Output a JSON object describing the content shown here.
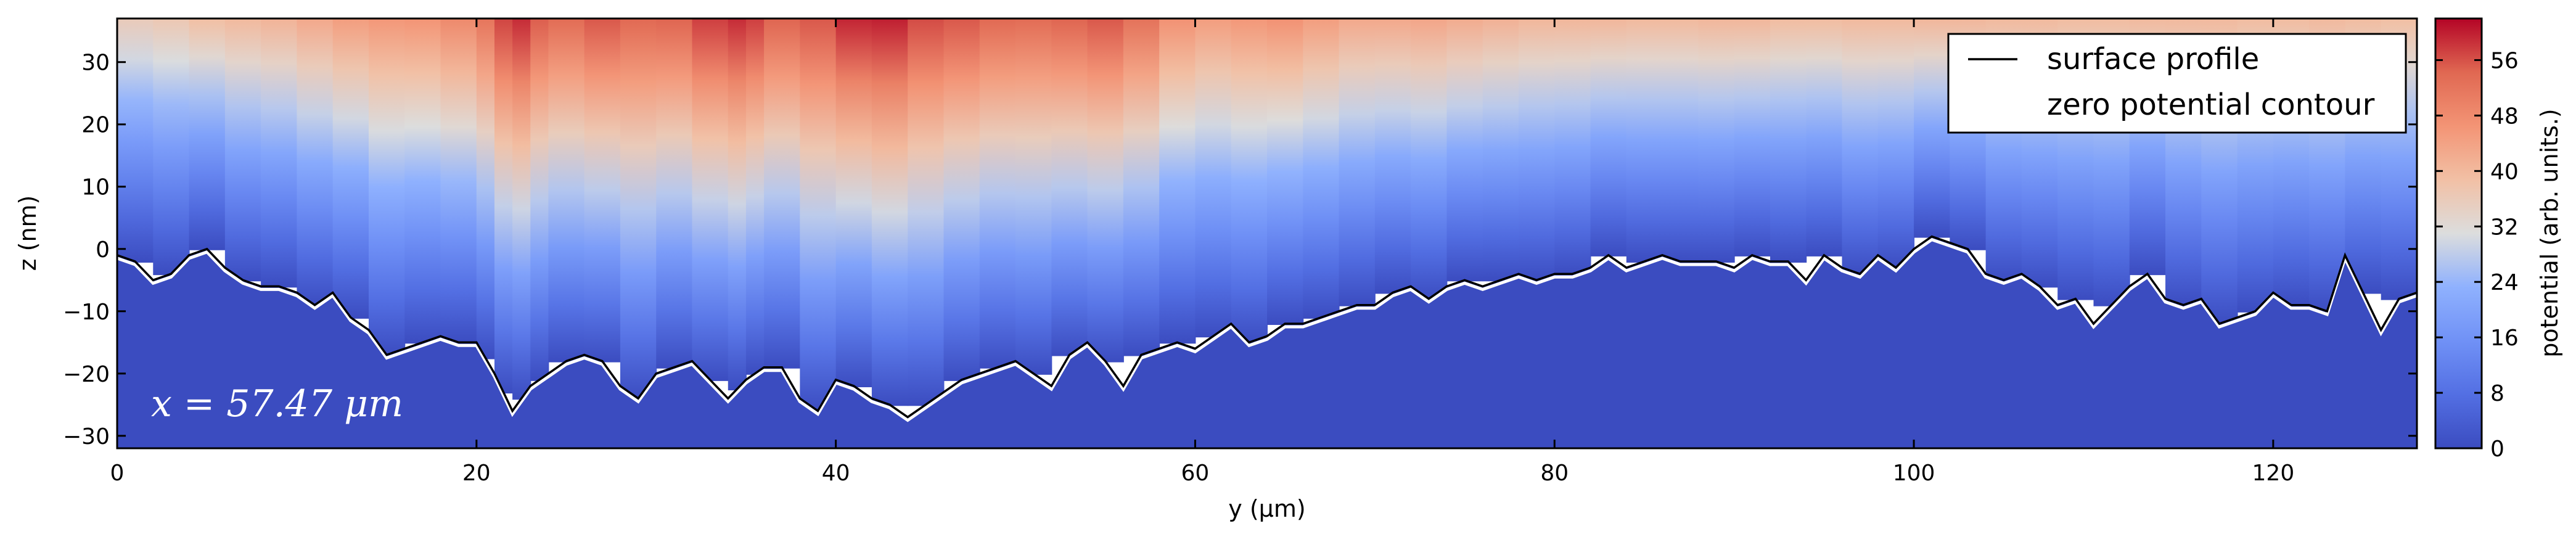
{
  "chart_data": {
    "type": "heatmap",
    "title": "",
    "xlabel": "y (µm)",
    "ylabel": "z (nm)",
    "xlim": [
      0,
      128
    ],
    "ylim": [
      -32,
      37
    ],
    "xticks": [
      0,
      20,
      40,
      60,
      80,
      100,
      120
    ],
    "xtick_labels": [
      "0",
      "20",
      "40",
      "60",
      "80",
      "100",
      "120"
    ],
    "yticks": [
      -30,
      -20,
      -10,
      0,
      10,
      20,
      30
    ],
    "ytick_labels": [
      "−30",
      "−20",
      "−10",
      "0",
      "10",
      "20",
      "30"
    ],
    "annotation": "x = 57.47 μm",
    "legend": {
      "placement": "top-right",
      "entries": [
        {
          "label": "surface profile",
          "color": "#000000"
        },
        {
          "label": "zero potential contour",
          "color": "#ffffff"
        }
      ]
    },
    "colorbar": {
      "label": "potential (arb. units.)",
      "colormap": "coolwarm",
      "range": [
        0,
        62
      ],
      "ticks": [
        0,
        8,
        16,
        24,
        32,
        40,
        48,
        56
      ],
      "tick_labels": [
        "0",
        "8",
        "16",
        "24",
        "32",
        "40",
        "48",
        "56"
      ]
    },
    "below_surface_color": "#3b4cc0",
    "surface_profile": {
      "name": "surface profile",
      "y": [
        0,
        1,
        2,
        3,
        4,
        5,
        6,
        7,
        8,
        9,
        10,
        11,
        12,
        13,
        14,
        15,
        16,
        17,
        18,
        19,
        20,
        21,
        22,
        23,
        24,
        25,
        26,
        27,
        28,
        29,
        30,
        31,
        32,
        33,
        34,
        35,
        36,
        37,
        38,
        39,
        40,
        41,
        42,
        43,
        44,
        45,
        46,
        47,
        48,
        49,
        50,
        51,
        52,
        53,
        54,
        55,
        56,
        57,
        58,
        59,
        60,
        61,
        62,
        63,
        64,
        65,
        66,
        67,
        68,
        69,
        70,
        71,
        72,
        73,
        74,
        75,
        76,
        77,
        78,
        79,
        80,
        81,
        82,
        83,
        84,
        85,
        86,
        87,
        88,
        89,
        90,
        91,
        92,
        93,
        94,
        95,
        96,
        97,
        98,
        99,
        100,
        101,
        102,
        103,
        104,
        105,
        106,
        107,
        108,
        109,
        110,
        111,
        112,
        113,
        114,
        115,
        116,
        117,
        118,
        119,
        120,
        121,
        122,
        123,
        124,
        125,
        126,
        127,
        128
      ],
      "z": [
        -1,
        -2,
        -5,
        -4,
        -1,
        0,
        -3,
        -5,
        -6,
        -6,
        -7,
        -9,
        -7,
        -11,
        -13,
        -17,
        -16,
        -15,
        -14,
        -15,
        -15,
        -20,
        -26,
        -22,
        -20,
        -18,
        -17,
        -18,
        -22,
        -24,
        -20,
        -19,
        -18,
        -21,
        -24,
        -21,
        -19,
        -19,
        -24,
        -26,
        -21,
        -22,
        -24,
        -25,
        -27,
        -25,
        -23,
        -21,
        -20,
        -19,
        -18,
        -20,
        -22,
        -17,
        -15,
        -18,
        -22,
        -17,
        -16,
        -15,
        -16,
        -14,
        -12,
        -15,
        -14,
        -12,
        -12,
        -11,
        -10,
        -9,
        -9,
        -7,
        -6,
        -8,
        -6,
        -5,
        -6,
        -5,
        -4,
        -5,
        -4,
        -4,
        -3,
        -1,
        -3,
        -2,
        -1,
        -2,
        -2,
        -2,
        -3,
        -1,
        -2,
        -2,
        -5,
        -1,
        -3,
        -4,
        -1,
        -3,
        0,
        2,
        1,
        0,
        -4,
        -5,
        -4,
        -6,
        -9,
        -8,
        -12,
        -9,
        -6,
        -4,
        -8,
        -9,
        -8,
        -12,
        -11,
        -10,
        -7,
        -9,
        -9,
        -10,
        -1,
        -7,
        -13,
        -8,
        -7
      ]
    },
    "zero_potential_contour": {
      "name": "zero potential contour",
      "note_offset_nm": -0.5
    },
    "potential_columns": {
      "y": [
        0,
        2,
        4,
        6,
        8,
        10,
        12,
        14,
        16,
        18,
        20,
        21,
        22,
        23,
        24,
        26,
        28,
        30,
        32,
        34,
        35,
        36,
        38,
        40,
        42,
        44,
        46,
        48,
        50,
        52,
        54,
        56,
        58,
        60,
        62,
        64,
        66,
        68,
        70,
        72,
        74,
        76,
        78,
        80,
        82,
        84,
        86,
        88,
        90,
        92,
        94,
        96,
        98,
        100,
        102,
        104,
        106,
        108,
        110,
        112,
        114,
        116,
        118,
        120,
        122,
        124,
        126,
        128
      ],
      "top_potential": [
        36,
        36,
        38,
        40,
        40,
        42,
        44,
        46,
        46,
        47,
        50,
        54,
        60,
        58,
        52,
        55,
        56,
        52,
        57,
        58,
        60,
        55,
        54,
        57,
        62,
        58,
        55,
        56,
        52,
        55,
        54,
        57,
        48,
        46,
        44,
        48,
        46,
        44,
        42,
        44,
        43,
        42,
        41,
        40,
        41,
        40,
        40,
        40,
        41,
        40,
        39,
        40,
        40,
        40,
        41,
        40,
        40,
        40,
        39,
        40,
        40,
        40,
        40,
        39,
        40,
        40,
        39,
        39
      ]
    }
  }
}
